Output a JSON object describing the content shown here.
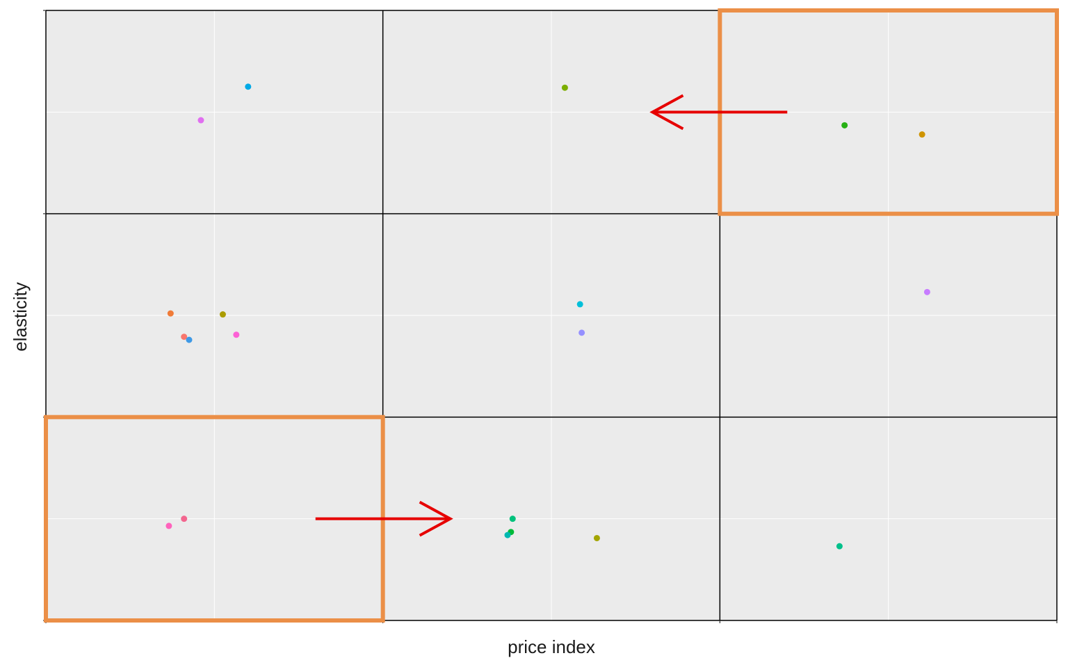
{
  "chart_data": {
    "type": "scatter",
    "title": "",
    "xlabel": "price index",
    "ylabel": "elasticity",
    "xlim": [
      0,
      6
    ],
    "ylim": [
      0,
      6
    ],
    "grid": true,
    "tick_labels_shown": false,
    "panel_background": "#ebebeb",
    "gridline_color": "#ffffff",
    "boundary_line_color": "#000000",
    "highlight_box_color": "#eb8f47",
    "arrow_color": "#e60000",
    "cell_boundaries_x": [
      2,
      4
    ],
    "cell_boundaries_y": [
      2,
      4
    ],
    "highlight_boxes": [
      {
        "x": [
          0,
          2
        ],
        "y": [
          0,
          2
        ]
      },
      {
        "x": [
          4,
          6
        ],
        "y": [
          4,
          6
        ]
      }
    ],
    "arrows": [
      {
        "from": [
          1.6,
          1.0
        ],
        "to": [
          2.4,
          1.0
        ]
      },
      {
        "from": [
          4.4,
          5.0
        ],
        "to": [
          3.6,
          5.0
        ]
      }
    ],
    "points": [
      {
        "x": 1.2,
        "y": 5.25,
        "color": "#00a9e6"
      },
      {
        "x": 0.92,
        "y": 4.92,
        "color": "#e06ff0"
      },
      {
        "x": 3.08,
        "y": 5.24,
        "color": "#7cae00"
      },
      {
        "x": 4.74,
        "y": 4.87,
        "color": "#26b014"
      },
      {
        "x": 5.2,
        "y": 4.78,
        "color": "#cf9400"
      },
      {
        "x": 0.74,
        "y": 3.02,
        "color": "#f07b38"
      },
      {
        "x": 1.05,
        "y": 3.01,
        "color": "#ab9c00"
      },
      {
        "x": 0.82,
        "y": 2.79,
        "color": "#f8766d"
      },
      {
        "x": 0.85,
        "y": 2.76,
        "color": "#3e99e6"
      },
      {
        "x": 1.13,
        "y": 2.81,
        "color": "#fc61d5"
      },
      {
        "x": 3.17,
        "y": 3.11,
        "color": "#00bfd9"
      },
      {
        "x": 3.18,
        "y": 2.83,
        "color": "#9590ff"
      },
      {
        "x": 5.23,
        "y": 3.23,
        "color": "#c77cff"
      },
      {
        "x": 0.73,
        "y": 0.93,
        "color": "#ff62bc"
      },
      {
        "x": 0.82,
        "y": 1.0,
        "color": "#f3668f"
      },
      {
        "x": 2.77,
        "y": 1.0,
        "color": "#00c17c"
      },
      {
        "x": 2.76,
        "y": 0.87,
        "color": "#00ba38"
      },
      {
        "x": 2.74,
        "y": 0.84,
        "color": "#00b8b0"
      },
      {
        "x": 3.27,
        "y": 0.81,
        "color": "#a3a500"
      },
      {
        "x": 4.71,
        "y": 0.73,
        "color": "#00c08b"
      }
    ]
  }
}
